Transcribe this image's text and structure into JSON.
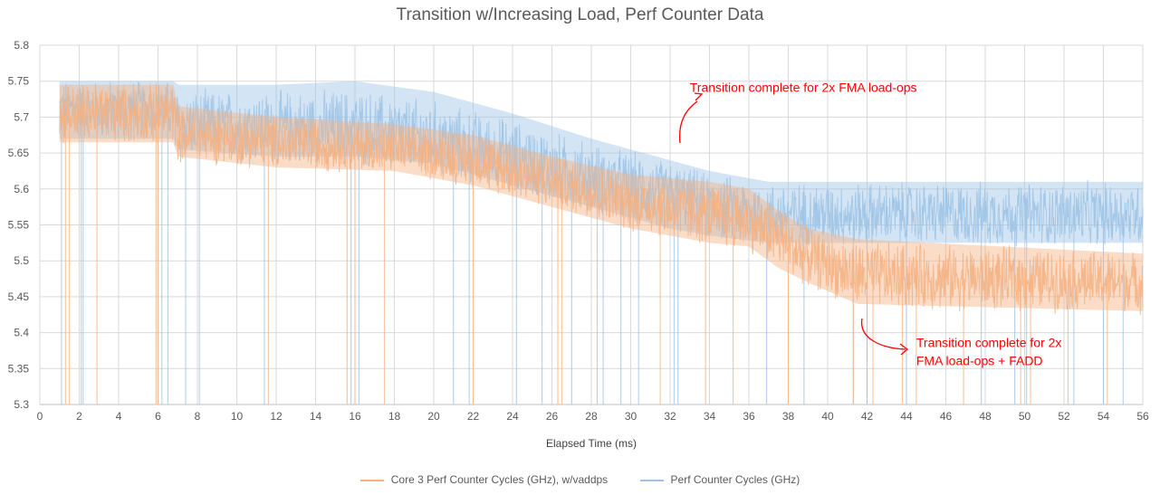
{
  "chart_data": {
    "type": "line",
    "title": "Transition w/Increasing Load, Perf Counter Data",
    "xlabel": "Elapsed Time (ms)",
    "ylabel": "",
    "xlim": [
      0,
      56
    ],
    "ylim": [
      5.3,
      5.8
    ],
    "x_ticks": [
      "0",
      "2",
      "4",
      "6",
      "8",
      "10",
      "12",
      "14",
      "16",
      "18",
      "20",
      "22",
      "24",
      "26",
      "28",
      "30",
      "32",
      "34",
      "36",
      "38",
      "40",
      "42",
      "44",
      "46",
      "48",
      "50",
      "52",
      "54",
      "56"
    ],
    "y_ticks": [
      "5.3",
      "5.35",
      "5.4",
      "5.45",
      "5.5",
      "5.55",
      "5.6",
      "5.65",
      "5.7",
      "5.75",
      "5.8"
    ],
    "grid": true,
    "legend_position": "bottom",
    "series": [
      {
        "name": "Core 3 Perf Counter Cycles (GHz), w/vaddps",
        "color": "#f4b183",
        "x_start": 1.0,
        "x_end": 56.0,
        "envelope": [
          {
            "x": 1.0,
            "low": 5.665,
            "mid": 5.705,
            "high": 5.745
          },
          {
            "x": 6.8,
            "low": 5.665,
            "mid": 5.705,
            "high": 5.745
          },
          {
            "x": 7.0,
            "low": 5.645,
            "mid": 5.675,
            "high": 5.715
          },
          {
            "x": 12.0,
            "low": 5.63,
            "mid": 5.665,
            "high": 5.7
          },
          {
            "x": 18.0,
            "low": 5.625,
            "mid": 5.655,
            "high": 5.69
          },
          {
            "x": 22.0,
            "low": 5.605,
            "mid": 5.64,
            "high": 5.675
          },
          {
            "x": 26.0,
            "low": 5.575,
            "mid": 5.61,
            "high": 5.645
          },
          {
            "x": 30.0,
            "low": 5.545,
            "mid": 5.58,
            "high": 5.62
          },
          {
            "x": 34.0,
            "low": 5.525,
            "mid": 5.565,
            "high": 5.61
          },
          {
            "x": 36.0,
            "low": 5.52,
            "mid": 5.555,
            "high": 5.6
          },
          {
            "x": 37.5,
            "low": 5.49,
            "mid": 5.53,
            "high": 5.57
          },
          {
            "x": 39.0,
            "low": 5.47,
            "mid": 5.505,
            "high": 5.545
          },
          {
            "x": 41.5,
            "low": 5.44,
            "mid": 5.48,
            "high": 5.53
          },
          {
            "x": 56.0,
            "low": 5.43,
            "mid": 5.47,
            "high": 5.51
          }
        ],
        "dropout_x": [
          1.3,
          1.5,
          2.9,
          5.9,
          6.0,
          11.6,
          15.6,
          16.0,
          17.5,
          22.0,
          26.3,
          26.5,
          28.3,
          31.5,
          33.8,
          35.2,
          38.0,
          41.3,
          42.0,
          42.3,
          43.8,
          44.5,
          46.9,
          49.8,
          50.3,
          52.2,
          54.2
        ]
      },
      {
        "name": "Perf Counter Cycles (GHz)",
        "color": "#9dc3e6",
        "x_start": 1.0,
        "x_end": 56.0,
        "envelope": [
          {
            "x": 1.0,
            "low": 5.67,
            "mid": 5.71,
            "high": 5.75
          },
          {
            "x": 6.8,
            "low": 5.67,
            "mid": 5.71,
            "high": 5.75
          },
          {
            "x": 7.0,
            "low": 5.655,
            "mid": 5.69,
            "high": 5.745
          },
          {
            "x": 12.0,
            "low": 5.645,
            "mid": 5.685,
            "high": 5.745
          },
          {
            "x": 16.0,
            "low": 5.645,
            "mid": 5.685,
            "high": 5.75
          },
          {
            "x": 20.0,
            "low": 5.635,
            "mid": 5.67,
            "high": 5.735
          },
          {
            "x": 24.0,
            "low": 5.605,
            "mid": 5.645,
            "high": 5.705
          },
          {
            "x": 28.0,
            "low": 5.575,
            "mid": 5.615,
            "high": 5.67
          },
          {
            "x": 32.0,
            "low": 5.545,
            "mid": 5.59,
            "high": 5.64
          },
          {
            "x": 34.0,
            "low": 5.535,
            "mid": 5.575,
            "high": 5.625
          },
          {
            "x": 37.0,
            "low": 5.525,
            "mid": 5.565,
            "high": 5.61
          },
          {
            "x": 56.0,
            "low": 5.525,
            "mid": 5.565,
            "high": 5.61
          }
        ],
        "dropout_x": [
          1.1,
          2.1,
          2.2,
          6.2,
          6.5,
          7.4,
          8.1,
          11.4,
          15.8,
          16.2,
          21.0,
          21.8,
          24.2,
          25.5,
          27.0,
          28.6,
          29.5,
          30.4,
          32.2,
          32.4,
          36.9,
          38.8,
          41.3,
          42.0,
          44.0,
          47.8,
          49.5,
          50.1,
          52.5,
          54.0,
          55.0
        ]
      }
    ],
    "annotations": [
      {
        "text_lines": [
          "Transition complete for 2x FMA load-ops"
        ],
        "x": 33.0,
        "y": 5.735
      },
      {
        "text_lines": [
          "Transition complete for 2x",
          "FMA load-ops + FADD"
        ],
        "x": 44.5,
        "y": 5.38
      }
    ],
    "noise_amplitude": 0.5
  }
}
